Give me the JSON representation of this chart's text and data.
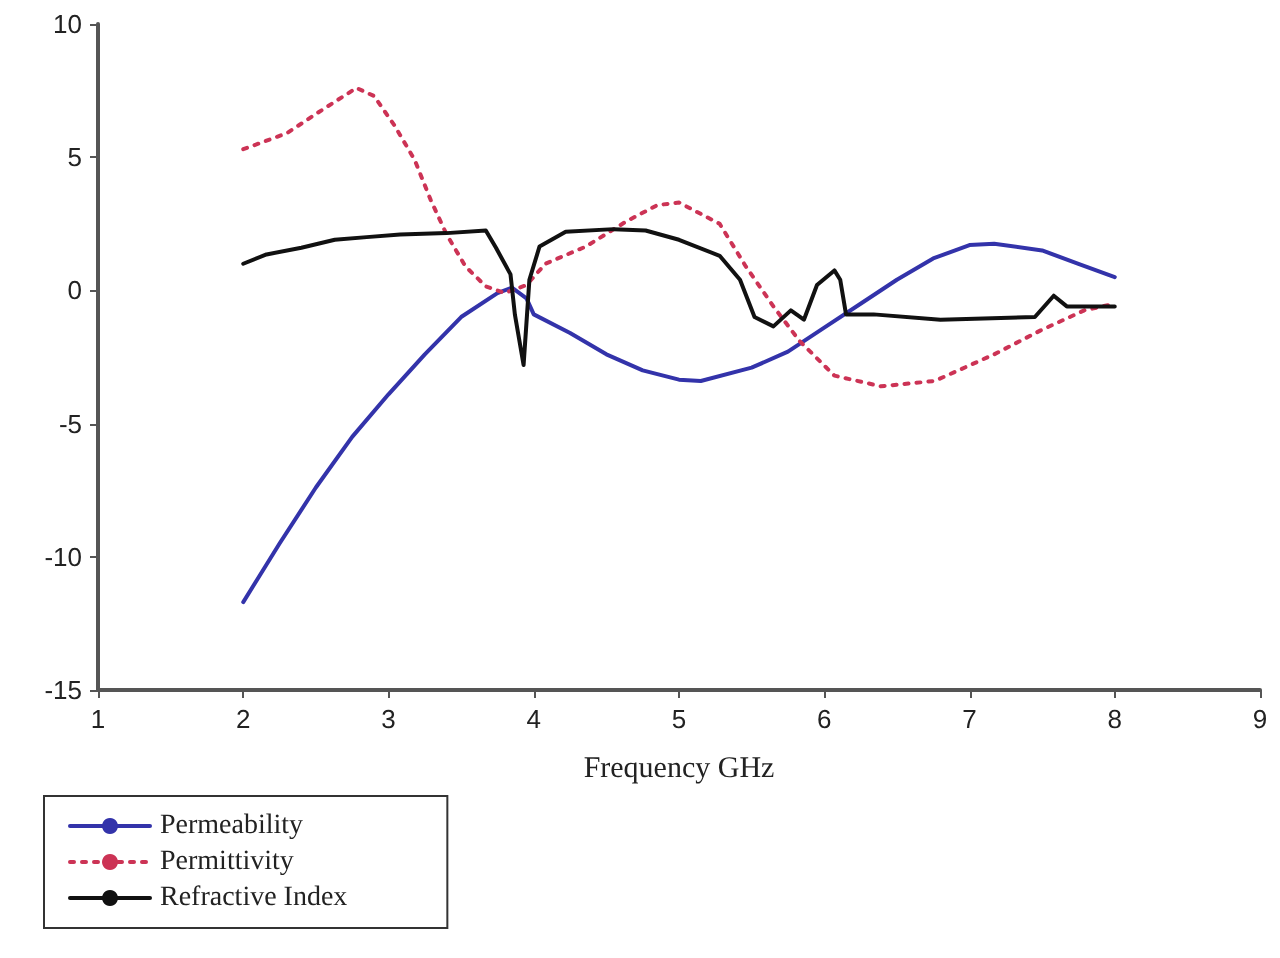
{
  "chart_data": {
    "type": "line",
    "xlabel": "Frequency GHz",
    "xlim": [
      1,
      9
    ],
    "xticks": [
      1,
      2,
      3,
      4,
      5,
      6,
      7,
      8,
      9
    ],
    "ylim": [
      -15,
      10
    ],
    "yticks": [
      -15,
      -10,
      -5,
      0,
      5,
      10
    ],
    "grid": false,
    "legend": "bottom left",
    "marker": "none",
    "series": [
      {
        "name": "Permeability",
        "color": "#3333aa",
        "line_style": "solid",
        "x": [
          2,
          2.25,
          2.5,
          2.75,
          3,
          3.25,
          3.5,
          3.75,
          3.85,
          3.95,
          4.0,
          4.25,
          4.5,
          4.75,
          5,
          5.15,
          5.5,
          5.75,
          6,
          6.25,
          6.5,
          6.75,
          7,
          7.17,
          7.5,
          7.75,
          8
        ],
        "values": [
          -11.7,
          -9.5,
          -7.4,
          -5.5,
          -3.9,
          -2.4,
          -1.0,
          -0.1,
          0.1,
          -0.3,
          -0.9,
          -1.6,
          -2.4,
          -3.0,
          -3.35,
          -3.4,
          -2.9,
          -2.3,
          -1.4,
          -0.5,
          0.4,
          1.2,
          1.7,
          1.75,
          1.5,
          1.0,
          0.5
        ]
      },
      {
        "name": "Permittivity",
        "color": "#cc3355",
        "line_style": "dotted",
        "x": [
          2,
          2.3,
          2.55,
          2.78,
          2.9,
          3.04,
          3.18,
          3.29,
          3.4,
          3.53,
          3.67,
          3.8,
          3.95,
          4.08,
          4.36,
          4.64,
          4.85,
          5.0,
          5.28,
          5.46,
          5.65,
          5.83,
          6.07,
          6.39,
          6.76,
          7.17,
          7.49,
          7.79,
          8
        ],
        "values": [
          5.3,
          5.9,
          6.8,
          7.6,
          7.3,
          6.2,
          4.9,
          3.4,
          2.1,
          0.9,
          0.15,
          -0.1,
          0.2,
          1.0,
          1.65,
          2.6,
          3.2,
          3.3,
          2.5,
          0.9,
          -0.6,
          -1.9,
          -3.2,
          -3.6,
          -3.4,
          -2.4,
          -1.5,
          -0.75,
          -0.5
        ]
      },
      {
        "name": "Refractive Index",
        "color": "#111111",
        "line_style": "solid",
        "x": [
          2,
          2.16,
          2.4,
          2.63,
          2.85,
          3.08,
          3.4,
          3.67,
          3.74,
          3.84,
          3.87,
          3.93,
          3.97,
          4.04,
          4.22,
          4.55,
          4.77,
          5.0,
          5.28,
          5.42,
          5.52,
          5.65,
          5.77,
          5.86,
          5.95,
          6.07,
          6.11,
          6.15,
          6.34,
          6.8,
          7.45,
          7.58,
          7.67,
          8
        ],
        "values": [
          1.0,
          1.35,
          1.6,
          1.9,
          2.0,
          2.1,
          2.15,
          2.25,
          1.6,
          0.6,
          -0.9,
          -2.8,
          0.4,
          1.65,
          2.2,
          2.3,
          2.25,
          1.9,
          1.3,
          0.4,
          -1.0,
          -1.35,
          -0.75,
          -1.1,
          0.2,
          0.75,
          0.4,
          -0.9,
          -0.9,
          -1.1,
          -1.0,
          -0.2,
          -0.6,
          -0.6
        ]
      }
    ]
  }
}
